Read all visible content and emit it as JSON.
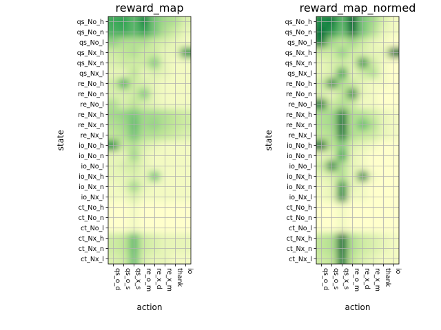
{
  "chart_data": [
    {
      "type": "heatmap",
      "title": "reward_map",
      "xlabel": "action",
      "ylabel": "state",
      "grid": true,
      "colormap": [
        "#ffffcc",
        "#c2e699",
        "#78c679",
        "#31a354",
        "#006837"
      ],
      "x_categories": [
        "qs_o_d",
        "qs_o_s",
        "qs_x_s",
        "re_o_m",
        "re_x_d",
        "re_x_m",
        "thank",
        "io"
      ],
      "y_categories": [
        "qs_No_h",
        "qs_No_n",
        "qs_No_l",
        "qs_Nx_h",
        "qs_Nx_n",
        "qs_Nx_l",
        "re_No_h",
        "re_No_n",
        "re_No_l",
        "re_Nx_h",
        "re_Nx_n",
        "re_Nx_l",
        "io_No_h",
        "io_No_n",
        "io_No_l",
        "io_Nx_h",
        "io_Nx_n",
        "io_Nx_l",
        "ct_No_h",
        "ct_No_n",
        "ct_No_l",
        "ct_Nx_h",
        "ct_Nx_n",
        "ct_Nx_l"
      ],
      "values": [
        [
          0.7,
          0.75,
          0.6,
          0.85,
          0.5,
          0.35,
          0.3,
          0.15
        ],
        [
          0.65,
          0.7,
          0.6,
          0.75,
          0.5,
          0.3,
          0.2,
          0.1
        ],
        [
          0.4,
          0.3,
          0.3,
          0.3,
          0.2,
          0.15,
          0.1,
          0.05
        ],
        [
          0.2,
          0.25,
          0.3,
          0.2,
          0.2,
          0.1,
          0.1,
          0.8
        ],
        [
          0.15,
          0.2,
          0.2,
          0.2,
          0.45,
          0.1,
          0.05,
          0.05
        ],
        [
          0.1,
          0.1,
          0.25,
          0.1,
          0.15,
          0.1,
          0.05,
          0.05
        ],
        [
          0.2,
          0.65,
          0.2,
          0.15,
          0.1,
          0.05,
          0.05,
          0.05
        ],
        [
          0.15,
          0.15,
          0.2,
          0.45,
          0.1,
          0.05,
          0.05,
          0.05
        ],
        [
          0.3,
          0.15,
          0.25,
          0.15,
          0.1,
          0.05,
          0.05,
          0.05
        ],
        [
          0.35,
          0.4,
          0.5,
          0.35,
          0.35,
          0.3,
          0.25,
          0.2
        ],
        [
          0.3,
          0.35,
          0.55,
          0.35,
          0.4,
          0.3,
          0.25,
          0.2
        ],
        [
          0.25,
          0.3,
          0.5,
          0.3,
          0.3,
          0.25,
          0.2,
          0.15
        ],
        [
          0.8,
          0.2,
          0.3,
          0.15,
          0.1,
          0.05,
          0.05,
          0.05
        ],
        [
          0.1,
          0.1,
          0.35,
          0.1,
          0.05,
          0.05,
          0.05,
          0.05
        ],
        [
          0.1,
          0.15,
          0.2,
          0.1,
          0.05,
          0.05,
          0.05,
          0.05
        ],
        [
          0.1,
          0.1,
          0.15,
          0.1,
          0.5,
          0.05,
          0.05,
          0.05
        ],
        [
          0.05,
          0.1,
          0.35,
          0.1,
          0.05,
          0.05,
          0.05,
          0.05
        ],
        [
          0.05,
          0.05,
          0.15,
          0.05,
          0.05,
          0.05,
          0.05,
          0.05
        ],
        [
          0.0,
          0.0,
          0.05,
          0.0,
          0.0,
          0.0,
          0.0,
          0.0
        ],
        [
          0.0,
          0.0,
          0.05,
          0.0,
          0.0,
          0.0,
          0.0,
          0.0
        ],
        [
          0.0,
          0.0,
          0.05,
          0.0,
          0.0,
          0.0,
          0.0,
          0.0
        ],
        [
          0.2,
          0.25,
          0.55,
          0.2,
          0.15,
          0.1,
          0.1,
          0.1
        ],
        [
          0.2,
          0.25,
          0.55,
          0.2,
          0.15,
          0.1,
          0.1,
          0.1
        ],
        [
          0.15,
          0.2,
          0.5,
          0.15,
          0.1,
          0.1,
          0.05,
          0.05
        ]
      ]
    },
    {
      "type": "heatmap",
      "title": "reward_map_normed",
      "xlabel": "action",
      "ylabel": "state",
      "grid": true,
      "colormap": [
        "#ffffcc",
        "#c2e699",
        "#78c679",
        "#31a354",
        "#006837"
      ],
      "x_categories": [
        "qs_o_d",
        "qs_o_s",
        "qs_x_s",
        "re_o_m",
        "re_x_d",
        "re_x_m",
        "thank",
        "io"
      ],
      "y_categories": [
        "qs_No_h",
        "qs_No_n",
        "qs_No_l",
        "qs_Nx_h",
        "qs_Nx_n",
        "qs_Nx_l",
        "re_No_h",
        "re_No_n",
        "re_No_l",
        "re_Nx_h",
        "re_Nx_n",
        "re_Nx_l",
        "io_No_h",
        "io_No_n",
        "io_No_l",
        "io_Nx_h",
        "io_Nx_n",
        "io_Nx_l",
        "ct_No_h",
        "ct_No_n",
        "ct_No_l",
        "ct_Nx_h",
        "ct_Nx_n",
        "ct_Nx_l"
      ],
      "values": [
        [
          0.85,
          0.9,
          0.6,
          1.0,
          0.5,
          0.35,
          0.15,
          0.05
        ],
        [
          0.95,
          0.8,
          0.55,
          0.95,
          0.5,
          0.3,
          0.1,
          0.05
        ],
        [
          0.9,
          0.35,
          0.25,
          0.35,
          0.2,
          0.1,
          0.05,
          0.0
        ],
        [
          0.2,
          0.2,
          0.4,
          0.2,
          0.15,
          0.1,
          0.1,
          0.95
        ],
        [
          0.1,
          0.15,
          0.2,
          0.15,
          0.8,
          0.2,
          0.05,
          0.0
        ],
        [
          0.1,
          0.15,
          0.75,
          0.1,
          0.2,
          0.3,
          0.05,
          0.0
        ],
        [
          0.2,
          0.85,
          0.3,
          0.2,
          0.1,
          0.05,
          0.05,
          0.0
        ],
        [
          0.15,
          0.1,
          0.25,
          0.85,
          0.1,
          0.05,
          0.0,
          0.0
        ],
        [
          0.9,
          0.2,
          0.3,
          0.2,
          0.05,
          0.05,
          0.0,
          0.0
        ],
        [
          0.3,
          0.35,
          0.9,
          0.3,
          0.3,
          0.2,
          0.1,
          0.05
        ],
        [
          0.3,
          0.35,
          0.95,
          0.3,
          0.55,
          0.3,
          0.1,
          0.05
        ],
        [
          0.25,
          0.3,
          0.9,
          0.3,
          0.25,
          0.2,
          0.1,
          0.05
        ],
        [
          0.95,
          0.25,
          0.45,
          0.15,
          0.1,
          0.05,
          0.0,
          0.0
        ],
        [
          0.1,
          0.15,
          0.7,
          0.1,
          0.05,
          0.0,
          0.0,
          0.0
        ],
        [
          0.2,
          0.85,
          0.3,
          0.1,
          0.05,
          0.0,
          0.0,
          0.0
        ],
        [
          0.1,
          0.15,
          0.3,
          0.1,
          0.85,
          0.05,
          0.0,
          0.0
        ],
        [
          0.05,
          0.1,
          0.8,
          0.1,
          0.05,
          0.0,
          0.0,
          0.0
        ],
        [
          0.05,
          0.1,
          0.85,
          0.05,
          0.05,
          0.0,
          0.0,
          0.0
        ],
        [
          0.0,
          0.0,
          0.05,
          0.0,
          0.0,
          0.0,
          0.0,
          0.0
        ],
        [
          0.0,
          0.0,
          0.05,
          0.0,
          0.0,
          0.0,
          0.0,
          0.0
        ],
        [
          0.0,
          0.0,
          0.05,
          0.0,
          0.0,
          0.0,
          0.0,
          0.0
        ],
        [
          0.25,
          0.3,
          0.95,
          0.3,
          0.2,
          0.15,
          0.1,
          0.05
        ],
        [
          0.25,
          0.3,
          0.95,
          0.3,
          0.2,
          0.15,
          0.1,
          0.05
        ],
        [
          0.2,
          0.25,
          0.9,
          0.25,
          0.15,
          0.1,
          0.05,
          0.05
        ]
      ]
    }
  ]
}
